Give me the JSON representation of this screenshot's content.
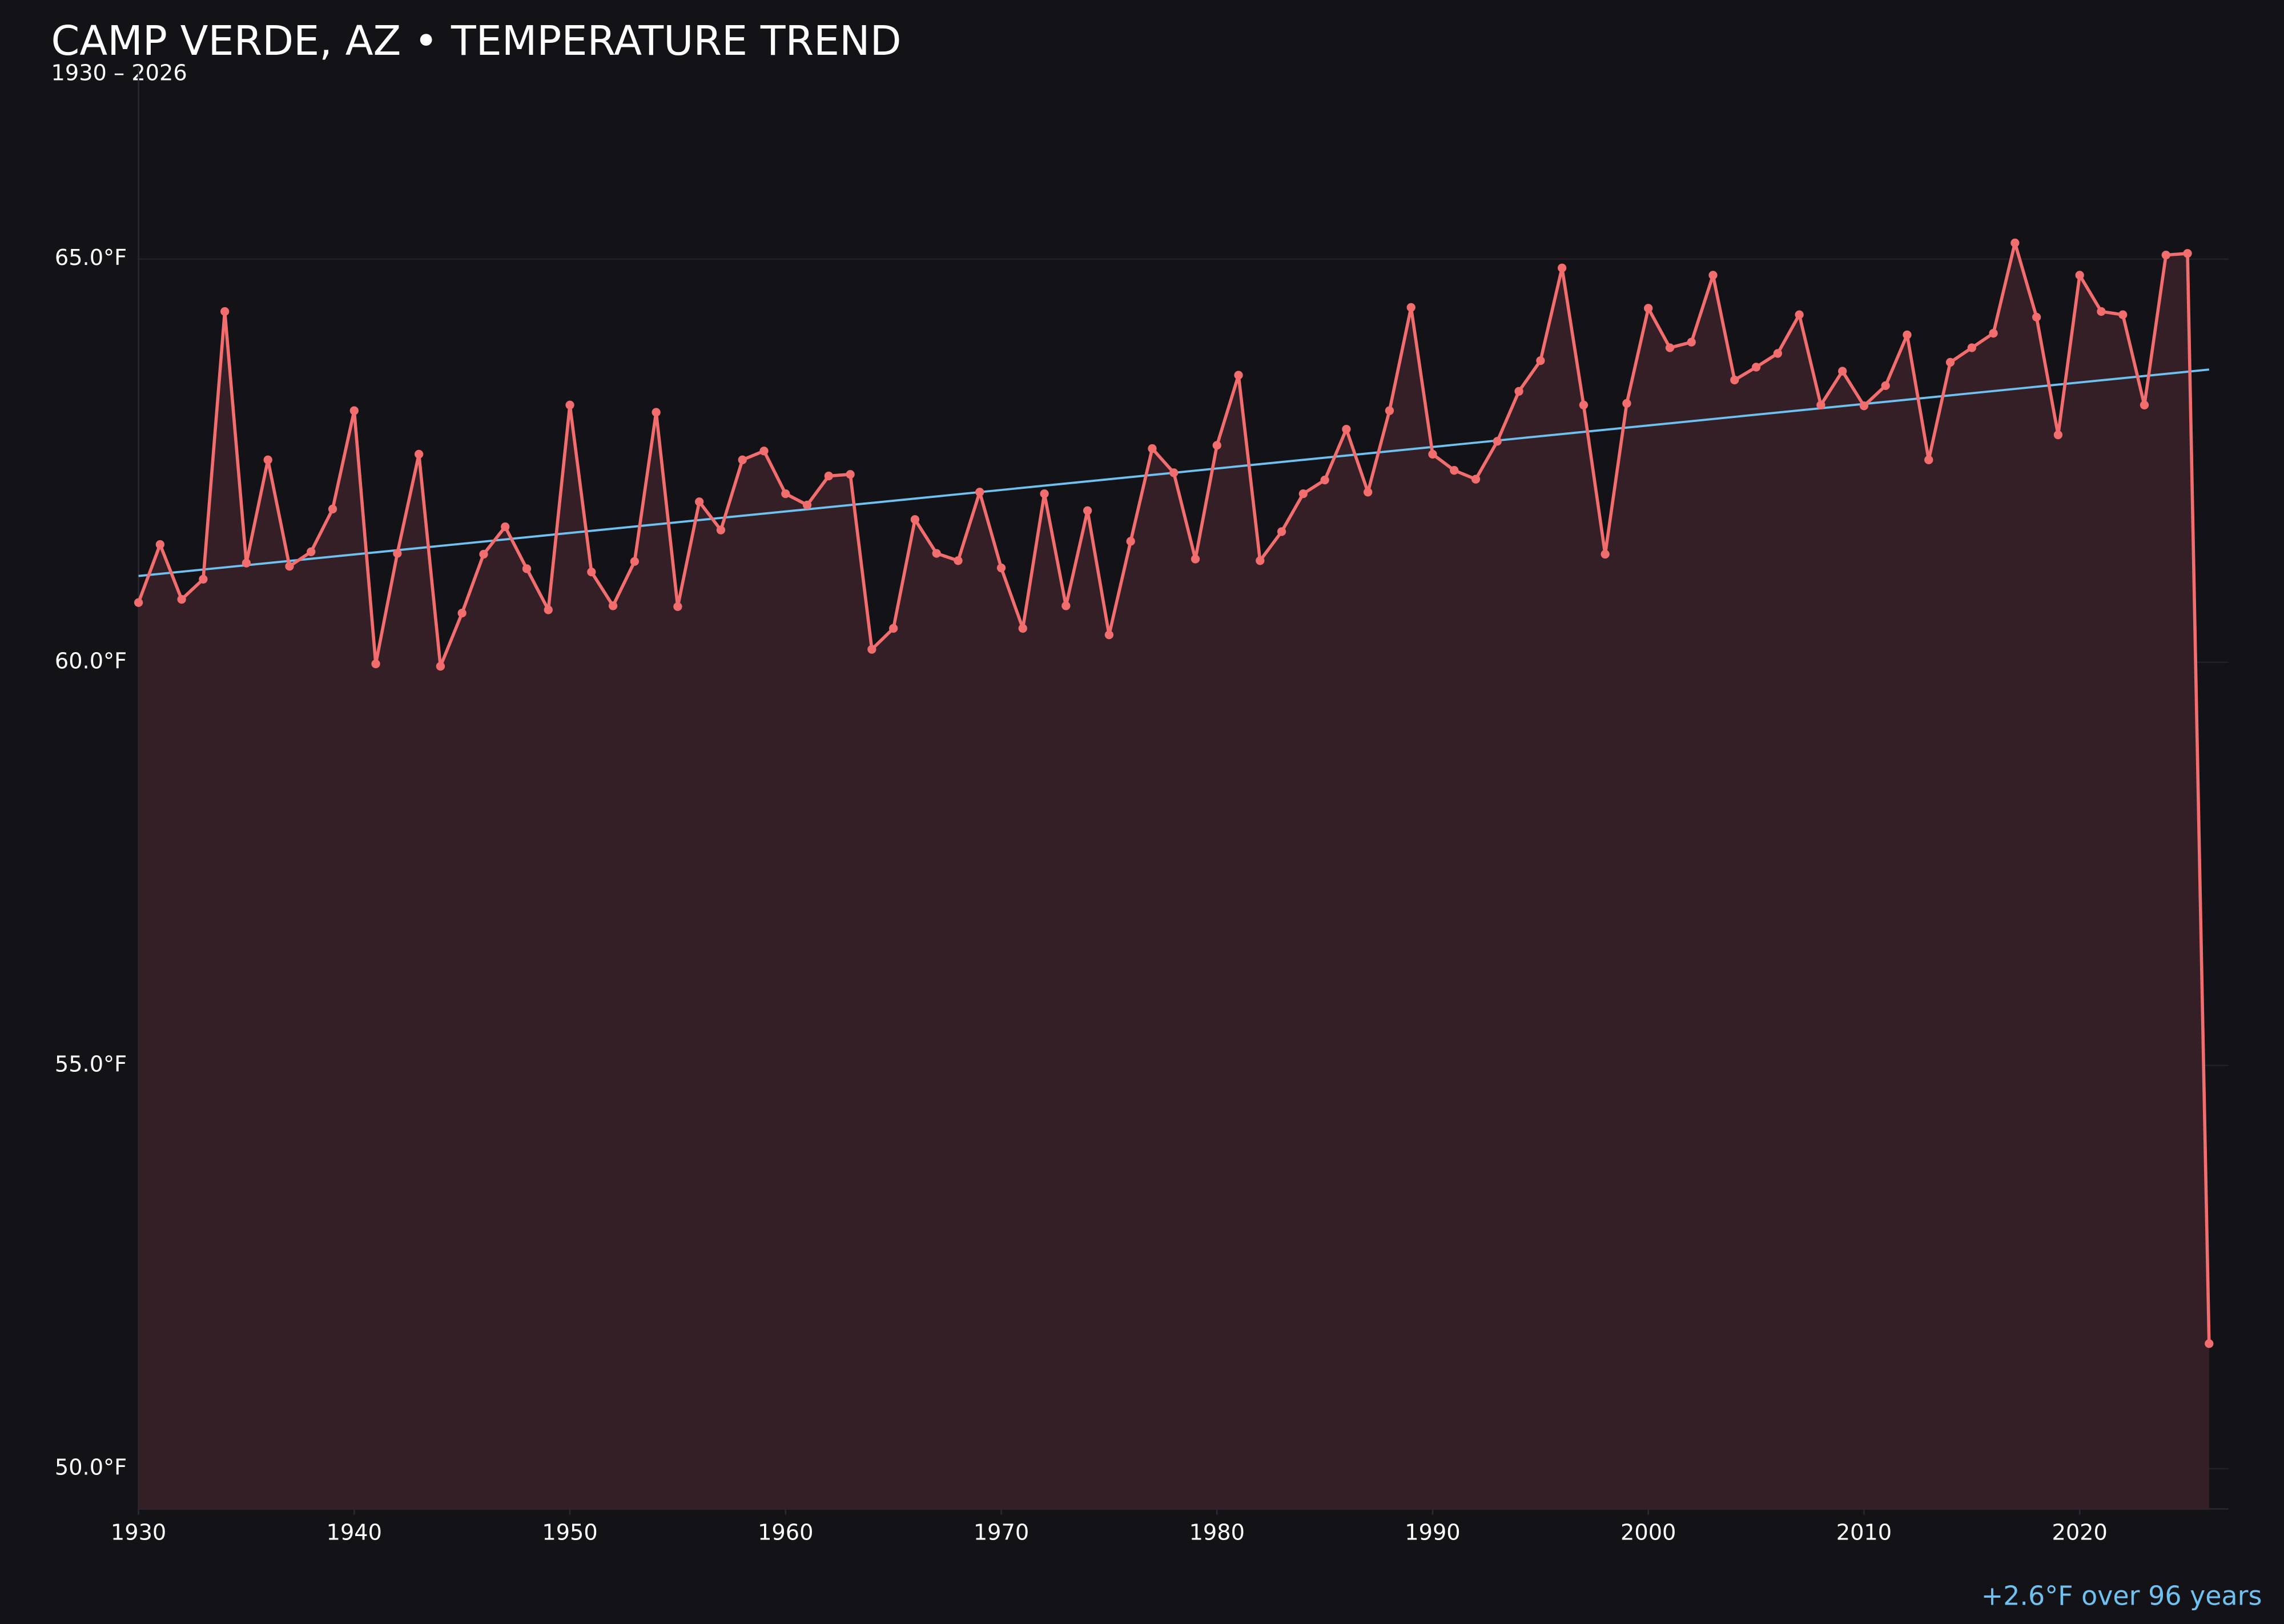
{
  "chart_data": {
    "type": "line",
    "title": "CAMP VERDE, AZ • TEMPERATURE TREND",
    "subtitle": "1930 – 2026",
    "annotation": "+2.6°F over 96 years",
    "x": [
      1930,
      1931,
      1932,
      1933,
      1934,
      1935,
      1936,
      1937,
      1938,
      1939,
      1940,
      1941,
      1942,
      1943,
      1944,
      1945,
      1946,
      1947,
      1948,
      1949,
      1950,
      1951,
      1952,
      1953,
      1954,
      1955,
      1956,
      1957,
      1958,
      1959,
      1960,
      1961,
      1962,
      1963,
      1964,
      1965,
      1966,
      1967,
      1968,
      1969,
      1970,
      1971,
      1972,
      1973,
      1974,
      1975,
      1976,
      1977,
      1978,
      1979,
      1980,
      1981,
      1982,
      1983,
      1984,
      1985,
      1986,
      1987,
      1988,
      1989,
      1990,
      1991,
      1992,
      1993,
      1994,
      1995,
      1996,
      1997,
      1998,
      1999,
      2000,
      2001,
      2002,
      2003,
      2004,
      2005,
      2006,
      2007,
      2008,
      2009,
      2010,
      2011,
      2012,
      2013,
      2014,
      2015,
      2016,
      2017,
      2018,
      2019,
      2020,
      2021,
      2022,
      2023,
      2024,
      2025,
      2026
    ],
    "values": [
      60.74,
      61.46,
      60.78,
      61.03,
      64.35,
      61.23,
      62.51,
      61.19,
      61.37,
      61.9,
      63.12,
      59.98,
      61.35,
      62.58,
      59.95,
      60.61,
      61.34,
      61.68,
      61.16,
      60.65,
      63.19,
      61.12,
      60.7,
      61.25,
      63.1,
      60.69,
      61.99,
      61.64,
      62.51,
      62.62,
      62.09,
      61.95,
      62.31,
      62.33,
      60.16,
      60.42,
      61.77,
      61.35,
      61.26,
      62.11,
      61.17,
      60.42,
      62.09,
      60.7,
      61.88,
      60.34,
      61.5,
      62.65,
      62.35,
      61.28,
      62.69,
      63.56,
      61.26,
      61.62,
      62.09,
      62.26,
      62.89,
      62.11,
      63.12,
      64.4,
      62.58,
      62.38,
      62.27,
      62.74,
      63.36,
      63.74,
      64.89,
      63.19,
      61.34,
      63.21,
      64.39,
      63.9,
      63.97,
      64.8,
      63.5,
      63.66,
      63.83,
      64.31,
      63.19,
      63.61,
      63.18,
      63.43,
      64.06,
      62.51,
      63.72,
      63.9,
      64.08,
      65.2,
      64.28,
      62.82,
      64.8,
      64.35,
      64.31,
      63.19,
      65.05,
      65.07,
      51.55
    ],
    "color": "#f26d6d",
    "area_color": "#351f26",
    "trend": {
      "x": [
        1930,
        2026
      ],
      "values": [
        61.07,
        63.63
      ],
      "color": "#6ec1f0"
    },
    "xlim": [
      1930,
      2026.9
    ],
    "ylim": [
      49.5,
      67.4
    ],
    "xticks": [
      1930,
      1940,
      1950,
      1960,
      1970,
      1980,
      1990,
      2000,
      2010,
      2020
    ],
    "yticks": [
      {
        "value": 50,
        "label": "50.0°F"
      },
      {
        "value": 55,
        "label": "55.0°F"
      },
      {
        "value": 60,
        "label": "60.0°F"
      },
      {
        "value": 65,
        "label": "65.0°F"
      }
    ],
    "grid": true
  }
}
